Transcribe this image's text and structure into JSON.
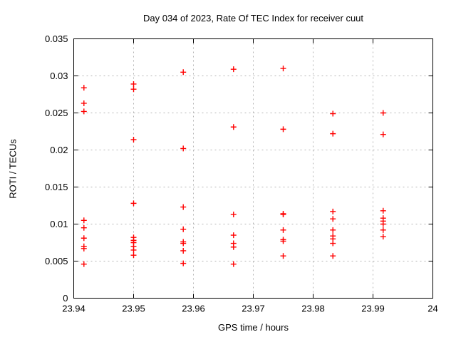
{
  "colors": {
    "background": "#ffffff",
    "axis": "#000000",
    "grid": "#b4b4b4",
    "marker": "#ff0000",
    "text": "#000000"
  },
  "chart_data": {
    "type": "scatter",
    "title": "Day 034 of 2023, Rate Of TEC Index for receiver cuut",
    "xlabel": "GPS time / hours",
    "ylabel": "ROTI / TECUs",
    "xlim": [
      23.94,
      24
    ],
    "ylim": [
      0,
      0.035
    ],
    "xticks": [
      23.94,
      23.95,
      23.96,
      23.97,
      23.98,
      23.99,
      24
    ],
    "xtick_labels": [
      "23.94",
      "23.95",
      "23.96",
      "23.97",
      "23.98",
      "23.99",
      "24"
    ],
    "yticks": [
      0,
      0.005,
      0.01,
      0.015,
      0.02,
      0.025,
      0.03,
      0.035
    ],
    "ytick_labels": [
      "0",
      "0.005",
      "0.01",
      "0.015",
      "0.02",
      "0.025",
      "0.03",
      "0.035"
    ],
    "grid": true,
    "legend_position": "none",
    "marker": "plus",
    "series": [
      {
        "name": "ROTI",
        "color": "#ff0000",
        "points": [
          [
            23.9417,
            0.0284
          ],
          [
            23.9417,
            0.0263
          ],
          [
            23.9417,
            0.0252
          ],
          [
            23.9417,
            0.0105
          ],
          [
            23.9417,
            0.0095
          ],
          [
            23.9417,
            0.0081
          ],
          [
            23.9417,
            0.007
          ],
          [
            23.9417,
            0.0067
          ],
          [
            23.9417,
            0.0046
          ],
          [
            23.95,
            0.0289
          ],
          [
            23.95,
            0.0282
          ],
          [
            23.95,
            0.0214
          ],
          [
            23.95,
            0.0128
          ],
          [
            23.95,
            0.0082
          ],
          [
            23.95,
            0.0078
          ],
          [
            23.95,
            0.0075
          ],
          [
            23.95,
            0.007
          ],
          [
            23.95,
            0.0065
          ],
          [
            23.95,
            0.0058
          ],
          [
            23.9583,
            0.0305
          ],
          [
            23.9583,
            0.0202
          ],
          [
            23.9583,
            0.0123
          ],
          [
            23.9583,
            0.0093
          ],
          [
            23.9583,
            0.0076
          ],
          [
            23.9583,
            0.0074
          ],
          [
            23.9583,
            0.0064
          ],
          [
            23.9583,
            0.0047
          ],
          [
            23.9667,
            0.0309
          ],
          [
            23.9667,
            0.0231
          ],
          [
            23.9667,
            0.0113
          ],
          [
            23.9667,
            0.0085
          ],
          [
            23.9667,
            0.0074
          ],
          [
            23.9667,
            0.0069
          ],
          [
            23.9667,
            0.0046
          ],
          [
            23.975,
            0.031
          ],
          [
            23.975,
            0.0228
          ],
          [
            23.975,
            0.0114
          ],
          [
            23.975,
            0.0113
          ],
          [
            23.975,
            0.0092
          ],
          [
            23.975,
            0.0079
          ],
          [
            23.975,
            0.0077
          ],
          [
            23.975,
            0.0057
          ],
          [
            23.9833,
            0.0249
          ],
          [
            23.9833,
            0.0222
          ],
          [
            23.9833,
            0.0117
          ],
          [
            23.9833,
            0.0107
          ],
          [
            23.9833,
            0.0092
          ],
          [
            23.9833,
            0.0084
          ],
          [
            23.9833,
            0.008
          ],
          [
            23.9833,
            0.0074
          ],
          [
            23.9833,
            0.0057
          ],
          [
            23.9917,
            0.025
          ],
          [
            23.9917,
            0.0221
          ],
          [
            23.9917,
            0.0118
          ],
          [
            23.9917,
            0.0108
          ],
          [
            23.9917,
            0.0104
          ],
          [
            23.9917,
            0.01
          ],
          [
            23.9917,
            0.0092
          ],
          [
            23.9917,
            0.0083
          ]
        ]
      }
    ]
  }
}
